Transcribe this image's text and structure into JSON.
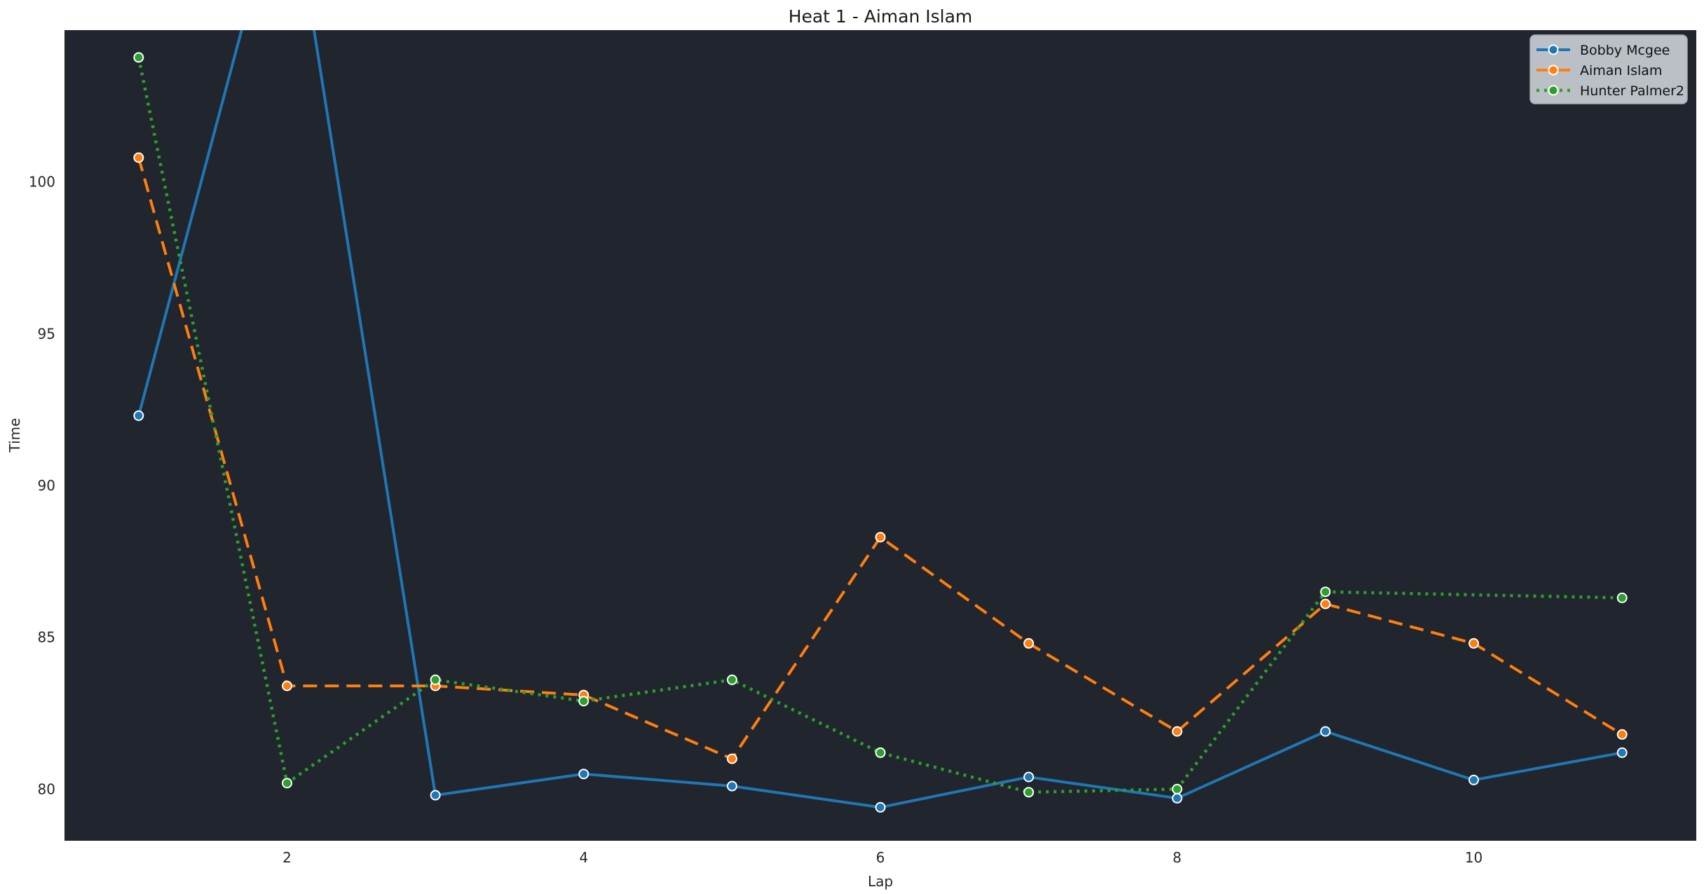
{
  "title": "Heat 1 - Aiman Islam",
  "colors": {
    "figure_background": "#ffffff",
    "axes_background": "#21252e",
    "legend_background": "#c9cdd4",
    "legend_border": "#a8adb5",
    "text": "#262626",
    "marker_edge": "#ffffff"
  },
  "chart_data": {
    "type": "line",
    "title": "Heat 1 - Aiman Islam",
    "xlabel": "Lap",
    "ylabel": "Time",
    "xlim": [
      0.5,
      11.5
    ],
    "ylim": [
      78.3,
      105.0
    ],
    "x_ticks": [
      2,
      4,
      6,
      8,
      10
    ],
    "y_ticks": [
      80,
      85,
      90,
      95,
      100
    ],
    "grid": false,
    "legend_position": "upper right",
    "series": [
      {
        "name": "Bobby Mcgee",
        "color": "#1f77b4",
        "line_style": "solid",
        "marker": "circle",
        "x": [
          1,
          2,
          3,
          4,
          5,
          6,
          7,
          8,
          9,
          10,
          11
        ],
        "y": [
          92.3,
          110.6,
          79.8,
          80.5,
          80.1,
          79.4,
          80.4,
          79.7,
          81.9,
          80.3,
          81.2
        ]
      },
      {
        "name": "Aiman Islam",
        "color": "#ff7f0e",
        "line_style": "dashed",
        "marker": "circle",
        "x": [
          1,
          2,
          3,
          4,
          5,
          6,
          7,
          8,
          9,
          10,
          11
        ],
        "y": [
          100.8,
          83.4,
          83.4,
          83.1,
          81.0,
          88.3,
          84.8,
          81.9,
          86.1,
          84.8,
          81.8
        ]
      },
      {
        "name": "Hunter Palmer2",
        "color": "#2ca02c",
        "line_style": "dotted",
        "marker": "circle",
        "x": [
          1,
          2,
          3,
          4,
          5,
          6,
          7,
          8,
          9,
          11
        ],
        "y": [
          104.1,
          80.2,
          83.6,
          82.9,
          83.6,
          81.2,
          79.9,
          80.0,
          86.5,
          86.3
        ]
      }
    ]
  }
}
